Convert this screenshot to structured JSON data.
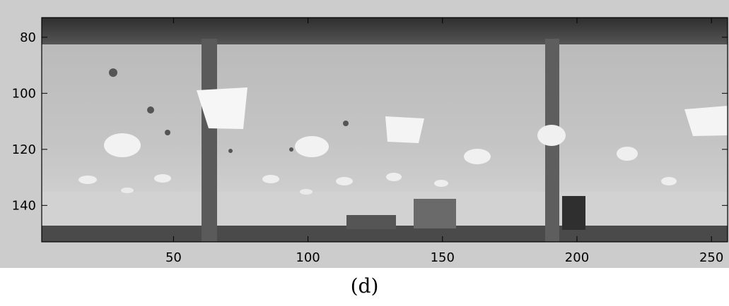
{
  "chart_data": {
    "type": "heatmap",
    "colormap": "grayscale",
    "content": "panoramic grayscale image of an indoor ceiling with lights and pillars",
    "xlim": [
      1,
      256
    ],
    "ylim": [
      73,
      153
    ],
    "y_reversed": true,
    "xticks": [
      50,
      100,
      150,
      200,
      250
    ],
    "yticks": [
      80,
      100,
      120,
      140
    ],
    "xtick_labels": [
      "50",
      "100",
      "150",
      "200",
      "250"
    ],
    "ytick_labels": [
      "80",
      "100",
      "120",
      "140"
    ],
    "grid": false,
    "legend": false
  },
  "caption": "(d)"
}
